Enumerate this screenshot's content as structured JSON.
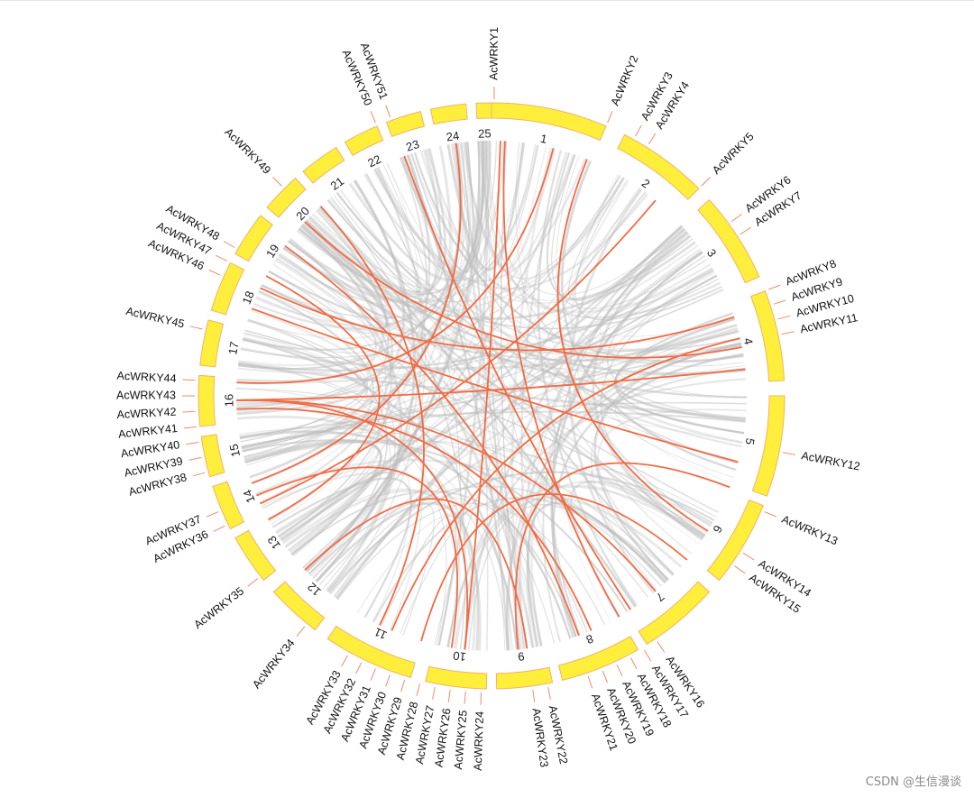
{
  "colors": {
    "chromosome_fill": "#FFEE3B",
    "chromosome_stroke": "#F2B26B",
    "link_background": "#BDBDBD",
    "link_highlight": "#F26B43",
    "gene_tick": "#F08A6E",
    "label_text": "#111111"
  },
  "chromosomes": [
    {
      "id": "1",
      "a0": 0,
      "a1": 23
    },
    {
      "id": "2",
      "a0": 27,
      "a1": 45
    },
    {
      "id": "3",
      "a0": 48,
      "a1": 66
    },
    {
      "id": "4",
      "a0": 69,
      "a1": 87
    },
    {
      "id": "5",
      "a0": 90,
      "a1": 110
    },
    {
      "id": "6",
      "a0": 112,
      "a1": 129
    },
    {
      "id": "7",
      "a0": 132,
      "a1": 148
    },
    {
      "id": "8",
      "a0": 150,
      "a1": 166
    },
    {
      "id": "9",
      "a0": 168,
      "a1": 179
    },
    {
      "id": "10",
      "a0": 181,
      "a1": 193
    },
    {
      "id": "11",
      "a0": 196,
      "a1": 214
    },
    {
      "id": "12",
      "a0": 217,
      "a1": 228
    },
    {
      "id": "13",
      "a0": 231,
      "a1": 241
    },
    {
      "id": "14",
      "a0": 243,
      "a1": 252
    },
    {
      "id": "15",
      "a0": 254,
      "a1": 262
    },
    {
      "id": "16",
      "a0": 264,
      "a1": 274
    },
    {
      "id": "17",
      "a0": 276,
      "a1": 285
    },
    {
      "id": "18",
      "a0": 287,
      "a1": 297
    },
    {
      "id": "19",
      "a0": 299,
      "a1": 308
    },
    {
      "id": "20",
      "a0": 310,
      "a1": 318
    },
    {
      "id": "21",
      "a0": 320,
      "a1": 328
    },
    {
      "id": "22",
      "a0": 330,
      "a1": 337
    },
    {
      "id": "23",
      "a0": 339,
      "a1": 346
    },
    {
      "id": "24",
      "a0": 348,
      "a1": 355
    },
    {
      "id": "25",
      "a0": 357,
      "a1": 360
    }
  ],
  "genes": [
    {
      "name": "AcWRKY1",
      "a": 0.5
    },
    {
      "name": "AcWRKY2",
      "a": 23
    },
    {
      "name": "AcWRKY3",
      "a": 29
    },
    {
      "name": "AcWRKY4",
      "a": 32
    },
    {
      "name": "AcWRKY5",
      "a": 45
    },
    {
      "name": "AcWRKY6",
      "a": 54
    },
    {
      "name": "AcWRKY7",
      "a": 57
    },
    {
      "name": "AcWRKY8",
      "a": 69
    },
    {
      "name": "AcWRKY9",
      "a": 72
    },
    {
      "name": "AcWRKY10",
      "a": 75
    },
    {
      "name": "AcWRKY11",
      "a": 78
    },
    {
      "name": "AcWRKY12",
      "a": 101
    },
    {
      "name": "AcWRKY13",
      "a": 113
    },
    {
      "name": "AcWRKY14",
      "a": 122
    },
    {
      "name": "AcWRKY15",
      "a": 125
    },
    {
      "name": "AcWRKY16",
      "a": 146
    },
    {
      "name": "AcWRKY17",
      "a": 149
    },
    {
      "name": "AcWRKY18",
      "a": 152
    },
    {
      "name": "AcWRKY19",
      "a": 155
    },
    {
      "name": "AcWRKY20",
      "a": 158
    },
    {
      "name": "AcWRKY21",
      "a": 161
    },
    {
      "name": "AcWRKY22",
      "a": 169
    },
    {
      "name": "AcWRKY23",
      "a": 172
    },
    {
      "name": "AcWRKY24",
      "a": 182
    },
    {
      "name": "AcWRKY25",
      "a": 185
    },
    {
      "name": "AcWRKY26",
      "a": 188
    },
    {
      "name": "AcWRKY27",
      "a": 191
    },
    {
      "name": "AcWRKY28",
      "a": 194
    },
    {
      "name": "AcWRKY29",
      "a": 197
    },
    {
      "name": "AcWRKY30",
      "a": 200
    },
    {
      "name": "AcWRKY31",
      "a": 203
    },
    {
      "name": "AcWRKY32",
      "a": 206
    },
    {
      "name": "AcWRKY33",
      "a": 209
    },
    {
      "name": "AcWRKY34",
      "a": 219
    },
    {
      "name": "AcWRKY35",
      "a": 232
    },
    {
      "name": "AcWRKY36",
      "a": 244
    },
    {
      "name": "AcWRKY37",
      "a": 247
    },
    {
      "name": "AcWRKY38",
      "a": 255
    },
    {
      "name": "AcWRKY39",
      "a": 258
    },
    {
      "name": "AcWRKY40",
      "a": 261
    },
    {
      "name": "AcWRKY41",
      "a": 264
    },
    {
      "name": "AcWRKY42",
      "a": 267
    },
    {
      "name": "AcWRKY43",
      "a": 270
    },
    {
      "name": "AcWRKY44",
      "a": 273
    },
    {
      "name": "AcWRKY45",
      "a": 283
    },
    {
      "name": "AcWRKY46",
      "a": 294
    },
    {
      "name": "AcWRKY47",
      "a": 297
    },
    {
      "name": "AcWRKY48",
      "a": 300
    },
    {
      "name": "AcWRKY49",
      "a": 315
    },
    {
      "name": "AcWRKY50",
      "a": 337
    },
    {
      "name": "AcWRKY51",
      "a": 340
    }
  ],
  "highlight_links": [
    [
      2,
      186
    ],
    [
      3,
      150
    ],
    [
      22,
      122
    ],
    [
      40,
      245
    ],
    [
      72,
      295
    ],
    [
      77,
      203
    ],
    [
      79,
      313
    ],
    [
      84,
      269
    ],
    [
      105,
      290
    ],
    [
      140,
      269
    ],
    [
      147,
      340
    ],
    [
      160,
      306
    ],
    [
      186,
      269
    ],
    [
      189,
      247
    ],
    [
      206,
      318
    ],
    [
      157,
      267
    ],
    [
      130,
      196
    ],
    [
      14,
      273
    ],
    [
      172,
      227
    ],
    [
      111,
      174
    ],
    [
      241,
      298
    ],
    [
      250,
      352
    ]
  ],
  "watermark": "CSDN @生信漫谈"
}
